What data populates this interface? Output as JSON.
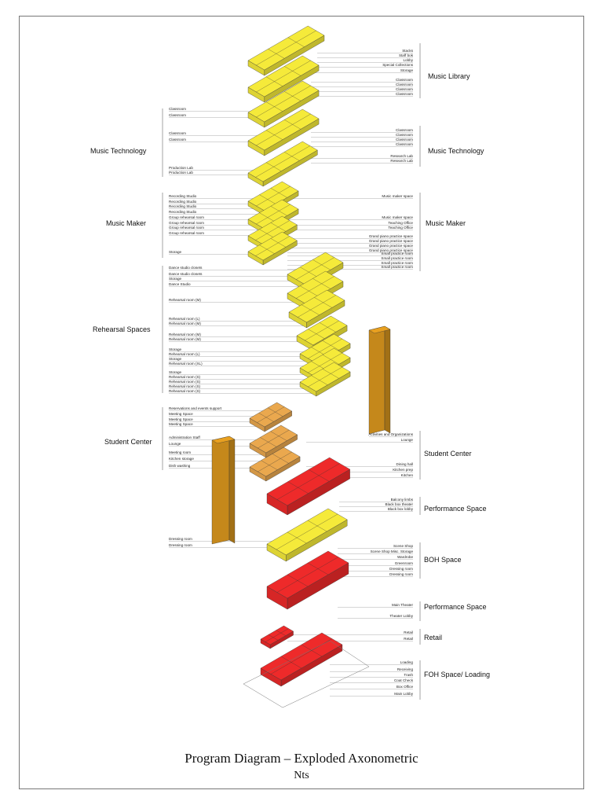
{
  "title": "Program Diagram – Exploded Axonometric",
  "subtitle": "Nts",
  "colors": {
    "yellow": "#f5ea3a",
    "orange_light": "#eaa84e",
    "orange": "#e8a020",
    "red": "#ee2a2a",
    "line": "#888888"
  },
  "sections": [
    {
      "label": "Music Library",
      "side": "right"
    },
    {
      "label": "Music Technology",
      "side": "left"
    },
    {
      "label": "Music Technology",
      "side": "right"
    },
    {
      "label": "Music Maker",
      "side": "left"
    },
    {
      "label": "Music Maker",
      "side": "right"
    },
    {
      "label": "Rehearsal Spaces",
      "side": "left"
    },
    {
      "label": "Student Center",
      "side": "left"
    },
    {
      "label": "Student Center",
      "side": "right"
    },
    {
      "label": "Performance Space",
      "side": "right"
    },
    {
      "label": "BOH Space",
      "side": "right"
    },
    {
      "label": "Performance Space",
      "side": "right"
    },
    {
      "label": "Retail",
      "side": "right"
    },
    {
      "label": "FOH Space/ Loading",
      "side": "right"
    }
  ],
  "labels_left": [
    "Classroom",
    "Classroom",
    "Classroom",
    "Classroom",
    "Production Lab",
    "Production Lab",
    "Recording Studio",
    "Recording Studio",
    "Recording Studio",
    "Recording Studio",
    "Group rehearsal room",
    "Group rehearsal room",
    "Group rehearsal room",
    "Group rehearsal room",
    "Storage",
    "Dance studio closets",
    "Dance studio closets",
    "Storage",
    "Dance Studio",
    "Rehearsal room (M)",
    "Rehearsal room (L)",
    "Rehearsal room (M)",
    "Rehearsal room (M)",
    "Rehearsal room (M)",
    "Storage",
    "Rehearsal room (L)",
    "Storage",
    "Rehearsal room (XL)",
    "Storage",
    "Rehearsal room (S)",
    "Rehearsal room (S)",
    "Rehearsal room (S)",
    "Rehearsal room (S)",
    "Reservations and events support",
    "Meeting Space",
    "Meeting Space",
    "Meeting Space",
    "Administration Staff",
    "Lounge",
    "Meeting room",
    "Kitchen storage",
    "Dish washing",
    "Dressing room",
    "Dressing room"
  ],
  "labels_right": [
    "Stacks",
    "Staff bok",
    "Lobby",
    "Special Collections",
    "Storage",
    "Classroom",
    "Classroom",
    "Classroom",
    "Classroom",
    "Classroom",
    "Classroom",
    "Classroom",
    "Classroom",
    "Research Lab",
    "Research Lab",
    "Music maker space",
    "Music maker space",
    "Teaching Office",
    "Teaching Office",
    "Grand piano practice space",
    "Grand piano practice space",
    "Grand piano practice space",
    "Grand piano practice space",
    "Small practice room",
    "Small practice room",
    "Small practice room",
    "Small practice room",
    "Activities and Organizations",
    "Lounge",
    "Dining hall",
    "Kitchen prep",
    "Kitchen",
    "Balcony limbs",
    "Black box theater",
    "Black box lobby",
    "Scene Shop",
    "Scene Shop Misc. Storage",
    "Wardrobe",
    "Greenroom",
    "Dressing room",
    "Dressing room",
    "Main Theater",
    "Theater Lobby",
    "Retail",
    "Retail",
    "Loading",
    "Receiving",
    "Trash",
    "Coat Check",
    "Box Office",
    "Main Lobby"
  ]
}
